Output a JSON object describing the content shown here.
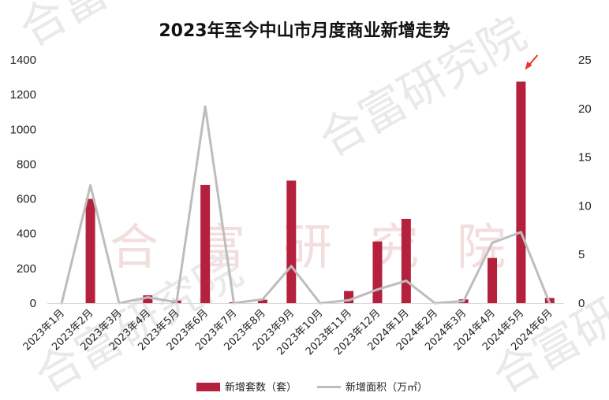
{
  "watermark": {
    "text": "合富研究院",
    "chars": [
      "合",
      "富",
      "研",
      "究",
      "院"
    ]
  },
  "chart_data": {
    "type": "bar",
    "title": "2023年至今中山市月度商业新增走势",
    "categories": [
      "2023年1月",
      "2023年2月",
      "2023年3月",
      "2023年4月",
      "2023年5月",
      "2023年6月",
      "2023年7月",
      "2023年8月",
      "2023年9月",
      "2023年10月",
      "2023年11月",
      "2023年12月",
      "2024年1月",
      "2024年2月",
      "2024年3月",
      "2024年4月",
      "2024年5月",
      "2024年6月"
    ],
    "series": [
      {
        "name": "新增套数（套）",
        "type": "bar",
        "axis": "left",
        "color": "#b5203d",
        "values": [
          0,
          600,
          0,
          45,
          15,
          680,
          5,
          20,
          705,
          0,
          70,
          355,
          485,
          0,
          22,
          260,
          1275,
          30
        ]
      },
      {
        "name": "新增面积（万㎡）",
        "type": "line",
        "axis": "right",
        "color": "#bdbdbd",
        "values": [
          0,
          12.1,
          0,
          0.6,
          0.1,
          20.2,
          0,
          0.4,
          3.8,
          0,
          0.3,
          1.4,
          2.3,
          0,
          0.2,
          6.2,
          7.3,
          0
        ]
      }
    ],
    "y_left": {
      "min": 0,
      "max": 1400,
      "ticks": [
        0,
        200,
        400,
        600,
        800,
        1000,
        1200,
        1400
      ]
    },
    "y_right": {
      "min": 0,
      "max": 25,
      "ticks": [
        0,
        5,
        10,
        15,
        20,
        25
      ]
    },
    "grid": false,
    "legend": "bottom",
    "annotation": {
      "type": "arrow",
      "category": "2024年5月",
      "color": "#e8392a"
    }
  }
}
